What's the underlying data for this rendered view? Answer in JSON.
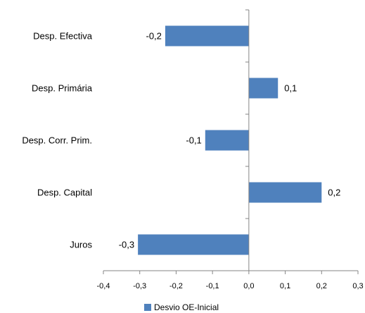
{
  "chart_data": {
    "type": "bar",
    "orientation": "horizontal",
    "categories": [
      "Desp. Efectiva",
      "Desp. Primária",
      "Desp. Corr. Prim.",
      "Desp. Capital",
      "Juros"
    ],
    "series": [
      {
        "name": "Desvio OE-Inicial",
        "values": [
          -0.23,
          0.08,
          -0.12,
          0.2,
          -0.305
        ],
        "color": "#4f81bd"
      }
    ],
    "data_labels": [
      "-0,2",
      "0,1",
      "-0,1",
      "0,2",
      "-0,3"
    ],
    "xlim": [
      -0.4,
      0.3
    ],
    "x_ticks": [
      -0.4,
      -0.3,
      -0.2,
      -0.1,
      0.0,
      0.1,
      0.2,
      0.3
    ],
    "x_tick_labels": [
      "-0,4",
      "-0,3",
      "-0,2",
      "-0,1",
      "0,0",
      "0,1",
      "0,2",
      "0,3"
    ],
    "grid": false,
    "legend_position": "bottom",
    "axis_color": "#868686"
  }
}
